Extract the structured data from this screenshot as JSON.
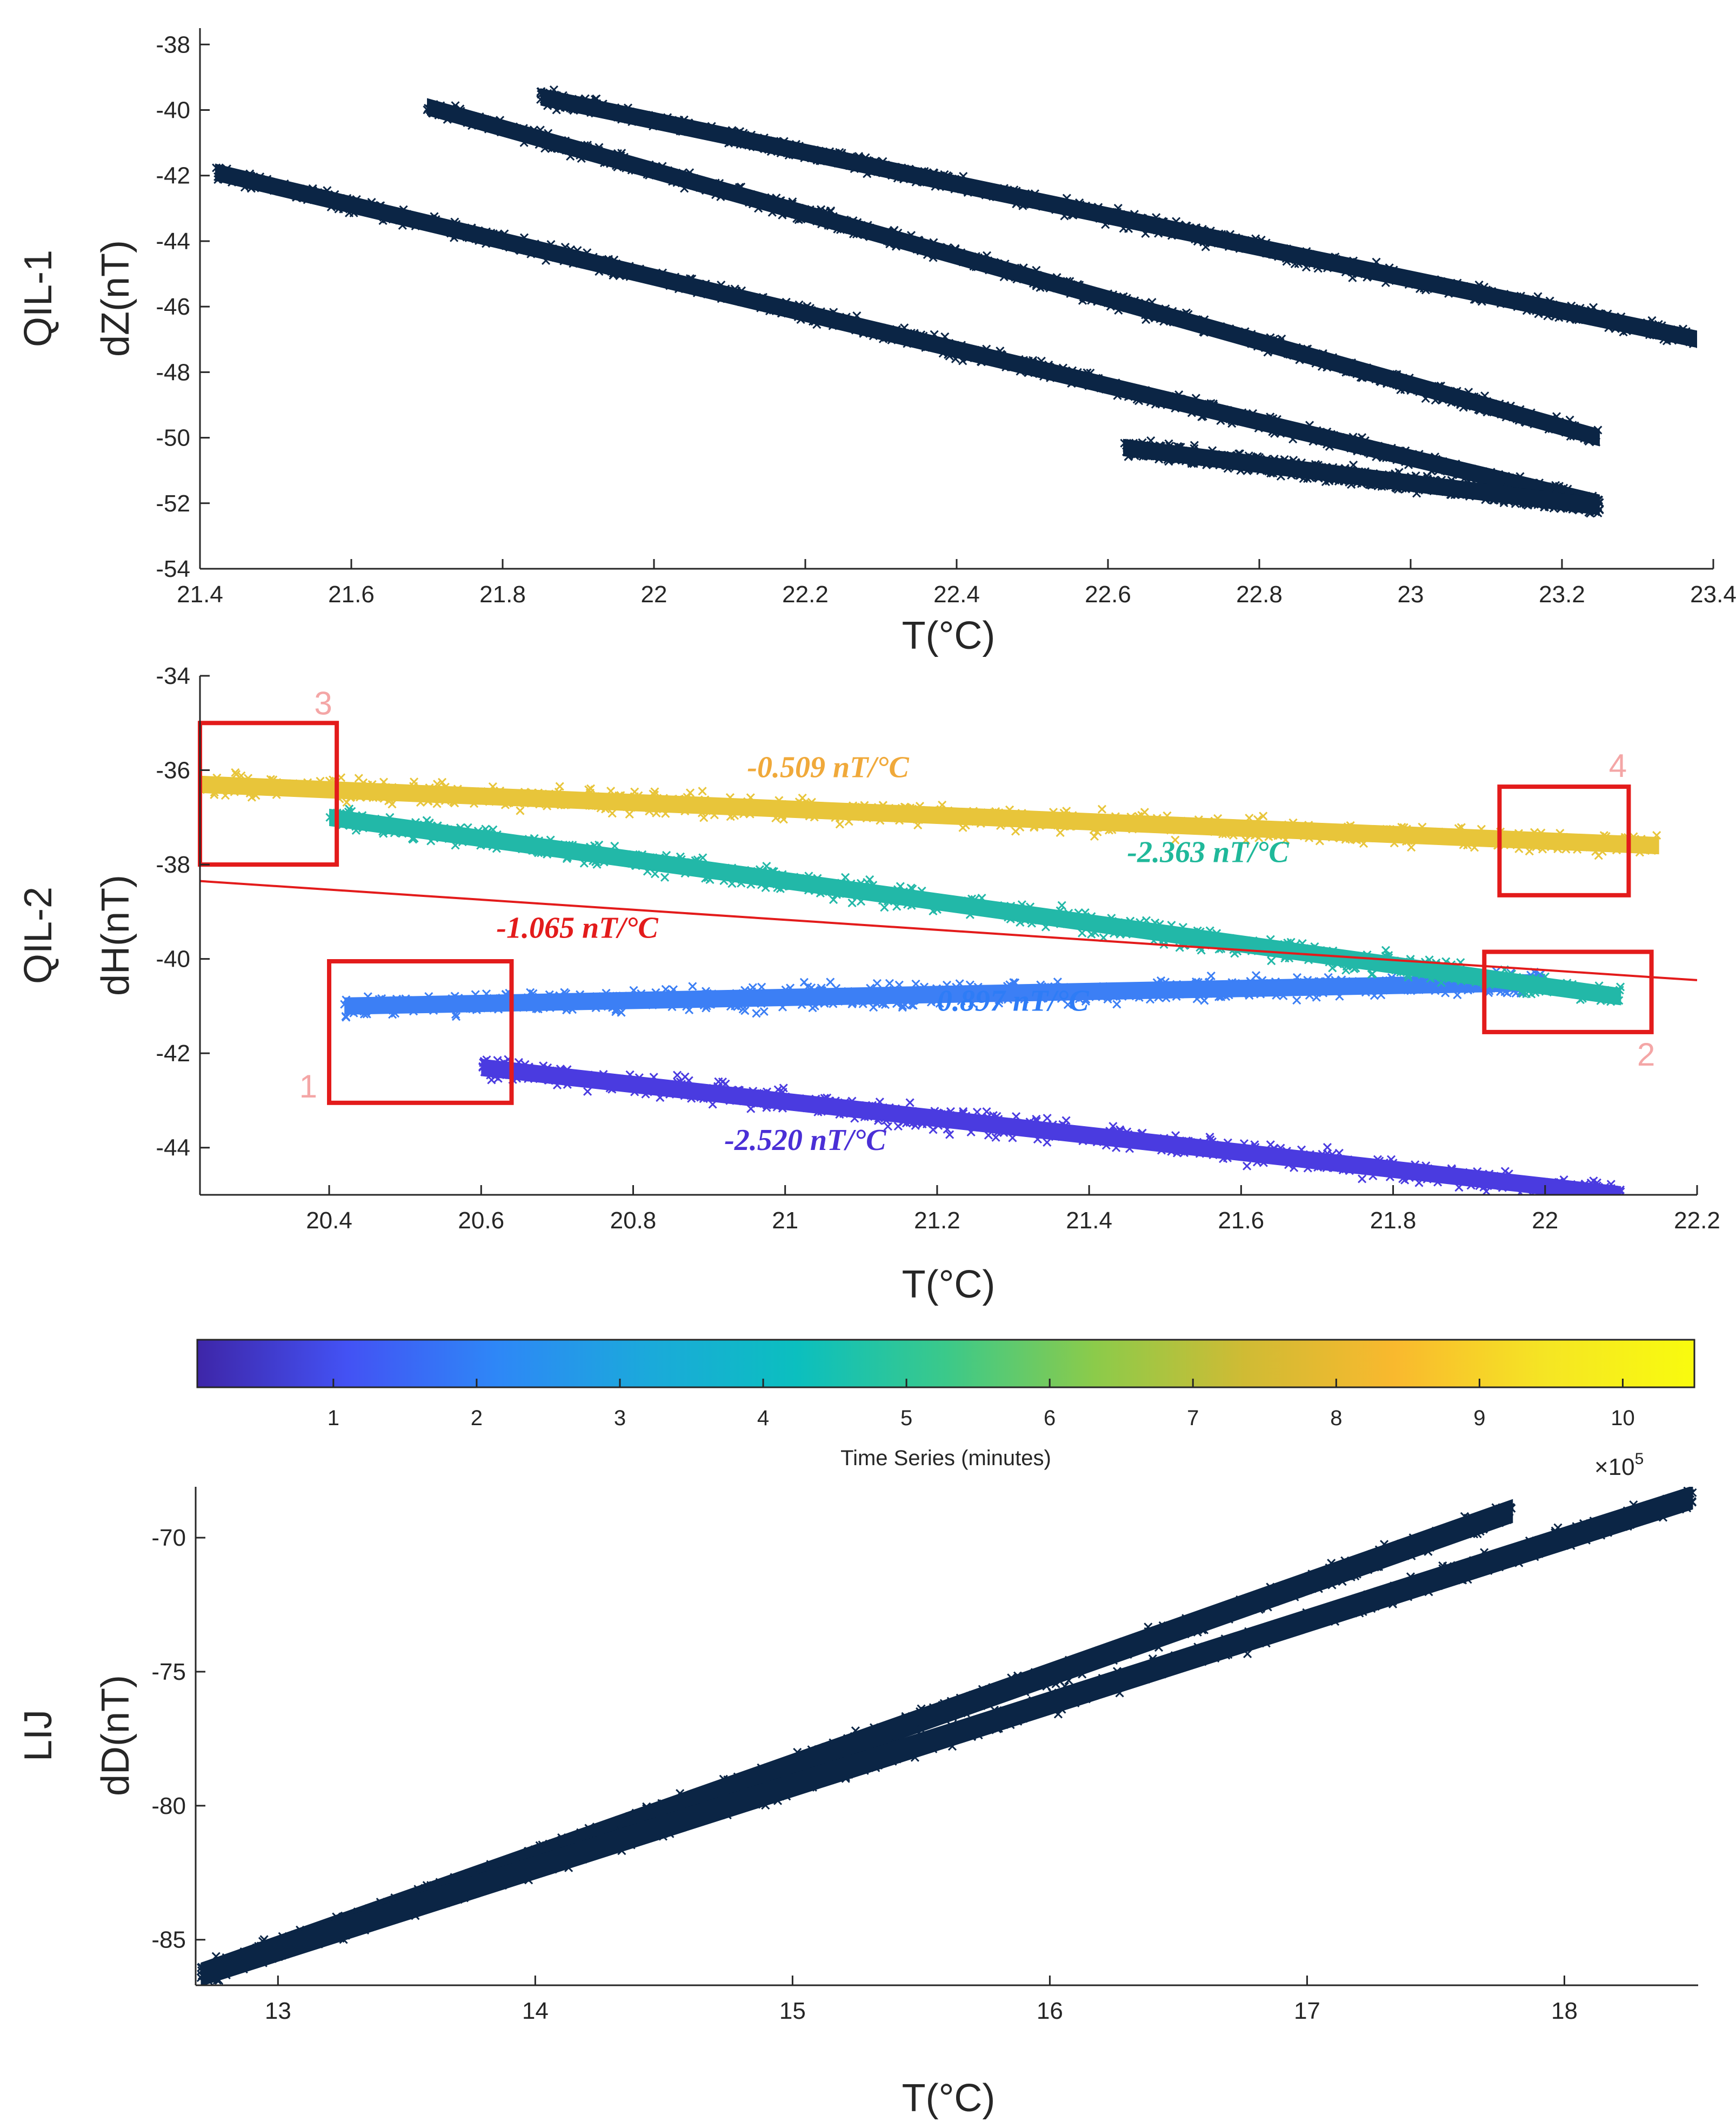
{
  "chart_data": [
    {
      "type": "scatter",
      "panel_label": "QIL-1",
      "xlabel": "T(°C)",
      "ylabel": "dZ(nT)",
      "xlim": [
        21.4,
        23.4
      ],
      "ylim": [
        -54,
        -37.5
      ],
      "xticks": [
        "21.4",
        "21.6",
        "21.8",
        "22",
        "22.2",
        "22.4",
        "22.6",
        "22.8",
        "23",
        "23.2",
        "23.4"
      ],
      "yticks": [
        "-38",
        "-40",
        "-42",
        "-44",
        "-46",
        "-48",
        "-50",
        "-52",
        "-54"
      ],
      "marker": "x",
      "color": "#0b2545",
      "series": [
        {
          "name": "band-1",
          "x": [
            21.42,
            23.25
          ],
          "y": [
            -41.9,
            -52.0
          ]
        },
        {
          "name": "band-2",
          "x": [
            21.7,
            23.25
          ],
          "y": [
            -39.9,
            -50.0
          ]
        },
        {
          "name": "band-3",
          "x": [
            21.85,
            23.38
          ],
          "y": [
            -39.6,
            -47.0
          ]
        },
        {
          "name": "band-4",
          "x": [
            22.62,
            23.25
          ],
          "y": [
            -50.3,
            -52.1
          ]
        }
      ]
    },
    {
      "type": "scatter",
      "panel_label": "QIL-2",
      "xlabel": "T(°C)",
      "ylabel": "dH(nT)",
      "xlim": [
        20.23,
        22.2
      ],
      "ylim": [
        -45,
        -34
      ],
      "xticks": [
        "20.4",
        "20.6",
        "20.8",
        "21",
        "21.2",
        "21.4",
        "21.6",
        "21.8",
        "22",
        "22.2"
      ],
      "yticks": [
        "-34",
        "-36",
        "-38",
        "-40",
        "-42",
        "-44"
      ],
      "marker": "x",
      "colored_by": "Time Series (minutes)",
      "series": [
        {
          "name": "segment-purple",
          "slope_label": "-2.520 nT/°C",
          "label_color": "#4a2fd6",
          "x": [
            20.6,
            22.1
          ],
          "y": [
            -42.3,
            -45.0
          ],
          "color": "#4a3be0"
        },
        {
          "name": "segment-blue",
          "slope_label": "0.897 nT/°C",
          "label_color": "#2e7cf6",
          "x": [
            20.42,
            22.0
          ],
          "y": [
            -41.0,
            -40.5
          ],
          "color": "#3c7ff5"
        },
        {
          "name": "segment-teal",
          "slope_label": "-2.363 nT/°C",
          "label_color": "#1fb89a",
          "x": [
            20.4,
            22.1
          ],
          "y": [
            -37.0,
            -40.8
          ],
          "color": "#22b8a8"
        },
        {
          "name": "segment-yellow",
          "slope_label": "-0.509 nT/°C",
          "label_color": "#f0a93a",
          "x": [
            20.23,
            22.15
          ],
          "y": [
            -36.3,
            -37.6
          ],
          "color": "#e8c53a"
        }
      ],
      "fit_line": {
        "label": "-1.065 nT/°C",
        "color": "#e31b1b",
        "x": [
          20.23,
          22.2
        ],
        "y": [
          -38.35,
          -40.45
        ]
      },
      "boxes": [
        {
          "label": "1",
          "x": [
            20.4,
            20.64
          ],
          "y": [
            -40.05,
            -43.05
          ]
        },
        {
          "label": "2",
          "x": [
            21.92,
            22.14
          ],
          "y": [
            -39.85,
            -41.55
          ]
        },
        {
          "label": "3",
          "x": [
            20.23,
            20.41
          ],
          "y": [
            -35.0,
            -38.0
          ]
        },
        {
          "label": "4",
          "x": [
            21.94,
            22.11
          ],
          "y": [
            -36.35,
            -38.65
          ]
        }
      ]
    },
    {
      "type": "scatter",
      "panel_label": "LIJ",
      "xlabel": "T(°C)",
      "ylabel": "dD(nT)",
      "xlim": [
        12.68,
        18.52
      ],
      "ylim": [
        -86.7,
        -68.1
      ],
      "xticks": [
        "13",
        "14",
        "15",
        "16",
        "17",
        "18"
      ],
      "yticks": [
        "-70",
        "-75",
        "-80",
        "-85"
      ],
      "exponent_label": "×10",
      "exponent_power": "5",
      "marker": "x",
      "color": "#0b2545",
      "series": [
        {
          "name": "band-upper",
          "x": [
            12.7,
            17.8
          ],
          "y": [
            -86.3,
            -69.0
          ]
        },
        {
          "name": "band-lower",
          "x": [
            12.7,
            18.5
          ],
          "y": [
            -86.3,
            -68.5
          ]
        }
      ]
    }
  ],
  "colorbar": {
    "label": "Time Series (minutes)",
    "ticks": [
      "1",
      "2",
      "3",
      "4",
      "5",
      "6",
      "7",
      "8",
      "9",
      "10"
    ],
    "tick_values": [
      1,
      2,
      3,
      4,
      5,
      6,
      7,
      8,
      9,
      10
    ],
    "range": [
      0.05,
      10.5
    ],
    "colors": [
      "#3e26a8",
      "#4352f4",
      "#2e87f7",
      "#1ba9db",
      "#0bbfbf",
      "#3bc98a",
      "#8ccb4a",
      "#d0bb34",
      "#f9b92e",
      "#f5e524",
      "#f9fb0e"
    ]
  }
}
